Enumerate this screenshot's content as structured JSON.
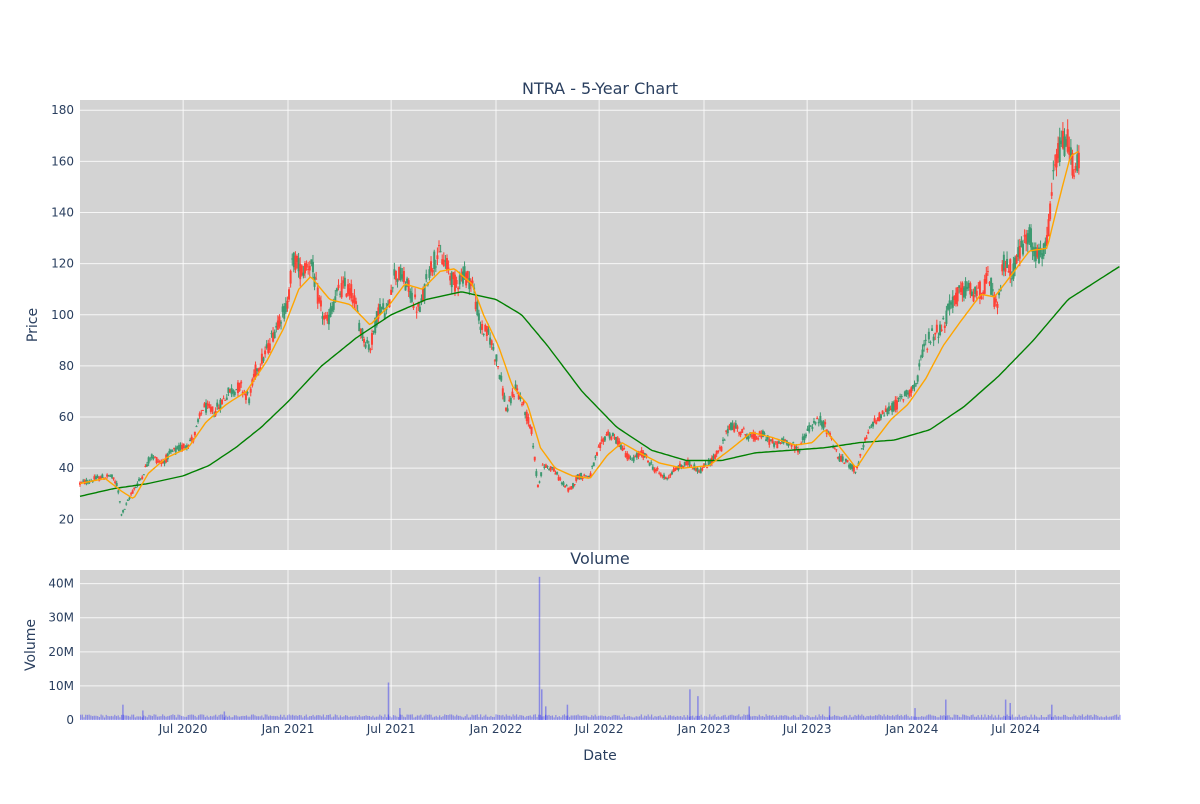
{
  "chart_data": [
    {
      "type": "candlestick",
      "title": "NTRA - 5-Year Chart",
      "ylabel": "Price",
      "ylim": [
        8,
        184
      ],
      "yticks": [
        20,
        40,
        60,
        80,
        100,
        120,
        140,
        160,
        180
      ],
      "xlim": [
        "2020-01-02",
        "2024-12-31"
      ],
      "grid": true,
      "colors": {
        "increasing": "#3d9970",
        "decreasing": "#ff4136",
        "ma_short": "#ffa500",
        "ma_long": "#008000",
        "plot_bg": "#d3d3d3"
      },
      "close_path": [
        [
          "2020-01-02",
          34
        ],
        [
          "2020-02-01",
          36
        ],
        [
          "2020-02-25",
          37
        ],
        [
          "2020-03-08",
          33
        ],
        [
          "2020-03-15",
          22
        ],
        [
          "2020-03-20",
          24
        ],
        [
          "2020-04-01",
          30
        ],
        [
          "2020-04-20",
          37
        ],
        [
          "2020-05-05",
          45
        ],
        [
          "2020-05-25",
          42
        ],
        [
          "2020-06-10",
          46
        ],
        [
          "2020-07-05",
          49
        ],
        [
          "2020-07-20",
          52
        ],
        [
          "2020-08-05",
          64
        ],
        [
          "2020-08-25",
          62
        ],
        [
          "2020-09-20",
          70
        ],
        [
          "2020-10-10",
          72
        ],
        [
          "2020-10-25",
          67
        ],
        [
          "2020-11-05",
          78
        ],
        [
          "2020-11-25",
          86
        ],
        [
          "2020-12-15",
          98
        ],
        [
          "2020-12-30",
          103
        ],
        [
          "2021-01-10",
          122
        ],
        [
          "2021-01-25",
          117
        ],
        [
          "2021-02-10",
          121
        ],
        [
          "2021-02-25",
          104
        ],
        [
          "2021-03-10",
          96
        ],
        [
          "2021-03-25",
          107
        ],
        [
          "2021-04-10",
          111
        ],
        [
          "2021-04-25",
          108
        ],
        [
          "2021-05-10",
          93
        ],
        [
          "2021-05-25",
          87
        ],
        [
          "2021-06-10",
          103
        ],
        [
          "2021-06-25",
          101
        ],
        [
          "2021-07-05",
          116
        ],
        [
          "2021-07-20",
          115
        ],
        [
          "2021-08-05",
          108
        ],
        [
          "2021-08-20",
          101
        ],
        [
          "2021-09-05",
          117
        ],
        [
          "2021-09-20",
          124
        ],
        [
          "2021-10-05",
          120
        ],
        [
          "2021-10-20",
          112
        ],
        [
          "2021-11-05",
          116
        ],
        [
          "2021-11-20",
          113
        ],
        [
          "2021-12-05",
          95
        ],
        [
          "2021-12-20",
          92
        ],
        [
          "2022-01-05",
          80
        ],
        [
          "2022-01-20",
          62
        ],
        [
          "2022-02-05",
          72
        ],
        [
          "2022-02-20",
          63
        ],
        [
          "2022-03-05",
          54
        ],
        [
          "2022-03-15",
          33
        ],
        [
          "2022-03-25",
          41
        ],
        [
          "2022-04-10",
          40
        ],
        [
          "2022-04-25",
          35
        ],
        [
          "2022-05-10",
          31
        ],
        [
          "2022-05-25",
          37
        ],
        [
          "2022-06-15",
          37
        ],
        [
          "2022-06-30",
          47
        ],
        [
          "2022-07-15",
          54
        ],
        [
          "2022-08-05",
          50
        ],
        [
          "2022-08-25",
          43
        ],
        [
          "2022-09-15",
          46
        ],
        [
          "2022-10-05",
          40
        ],
        [
          "2022-10-25",
          36
        ],
        [
          "2022-11-15",
          40
        ],
        [
          "2022-12-05",
          42
        ],
        [
          "2022-12-25",
          39
        ],
        [
          "2023-01-10",
          42
        ],
        [
          "2023-02-01",
          48
        ],
        [
          "2023-02-15",
          57
        ],
        [
          "2023-03-05",
          55
        ],
        [
          "2023-03-25",
          52
        ],
        [
          "2023-04-15",
          53
        ],
        [
          "2023-05-05",
          49
        ],
        [
          "2023-05-25",
          51
        ],
        [
          "2023-06-15",
          47
        ],
        [
          "2023-07-05",
          56
        ],
        [
          "2023-07-25",
          59
        ],
        [
          "2023-08-10",
          53
        ],
        [
          "2023-08-25",
          44
        ],
        [
          "2023-09-10",
          42
        ],
        [
          "2023-09-25",
          39
        ],
        [
          "2023-10-10",
          50
        ],
        [
          "2023-10-25",
          58
        ],
        [
          "2023-11-15",
          62
        ],
        [
          "2023-12-05",
          65
        ],
        [
          "2023-12-25",
          70
        ],
        [
          "2024-01-10",
          73
        ],
        [
          "2024-01-20",
          87
        ],
        [
          "2024-02-05",
          92
        ],
        [
          "2024-02-25",
          96
        ],
        [
          "2024-03-15",
          107
        ],
        [
          "2024-04-05",
          110
        ],
        [
          "2024-04-25",
          108
        ],
        [
          "2024-05-15",
          114
        ],
        [
          "2024-05-30",
          101
        ],
        [
          "2024-06-10",
          121
        ],
        [
          "2024-06-25",
          117
        ],
        [
          "2024-07-10",
          126
        ],
        [
          "2024-07-25",
          131
        ],
        [
          "2024-08-10",
          122
        ],
        [
          "2024-08-25",
          127
        ],
        [
          "2024-09-05",
          153
        ],
        [
          "2024-09-15",
          165
        ],
        [
          "2024-09-30",
          168
        ],
        [
          "2024-10-10",
          158
        ],
        [
          "2024-10-20",
          162
        ]
      ],
      "moving_average_short": [
        [
          "2020-01-02",
          34
        ],
        [
          "2020-02-15",
          36
        ],
        [
          "2020-03-15",
          31
        ],
        [
          "2020-04-05",
          28
        ],
        [
          "2020-05-01",
          38
        ],
        [
          "2020-06-01",
          44
        ],
        [
          "2020-07-10",
          48
        ],
        [
          "2020-08-10",
          58
        ],
        [
          "2020-09-15",
          65
        ],
        [
          "2020-10-20",
          70
        ],
        [
          "2020-11-25",
          82
        ],
        [
          "2020-12-25",
          95
        ],
        [
          "2021-01-20",
          110
        ],
        [
          "2021-02-10",
          115
        ],
        [
          "2021-03-15",
          106
        ],
        [
          "2021-04-20",
          104
        ],
        [
          "2021-05-25",
          96
        ],
        [
          "2021-06-25",
          103
        ],
        [
          "2021-07-25",
          112
        ],
        [
          "2021-08-25",
          110
        ],
        [
          "2021-09-25",
          117
        ],
        [
          "2021-10-20",
          118
        ],
        [
          "2021-11-20",
          112
        ],
        [
          "2021-12-10",
          100
        ],
        [
          "2022-01-05",
          88
        ],
        [
          "2022-01-30",
          72
        ],
        [
          "2022-02-25",
          65
        ],
        [
          "2022-03-20",
          48
        ],
        [
          "2022-04-15",
          40
        ],
        [
          "2022-05-15",
          37
        ],
        [
          "2022-06-15",
          36
        ],
        [
          "2022-07-15",
          45
        ],
        [
          "2022-08-10",
          50
        ],
        [
          "2022-09-10",
          46
        ],
        [
          "2022-10-15",
          42
        ],
        [
          "2022-11-25",
          40
        ],
        [
          "2023-01-10",
          41
        ],
        [
          "2023-02-20",
          48
        ],
        [
          "2023-03-25",
          54
        ],
        [
          "2023-05-01",
          52
        ],
        [
          "2023-06-10",
          49
        ],
        [
          "2023-07-10",
          50
        ],
        [
          "2023-08-01",
          55
        ],
        [
          "2023-09-01",
          47
        ],
        [
          "2023-09-25",
          40
        ],
        [
          "2023-10-25",
          50
        ],
        [
          "2023-11-25",
          59
        ],
        [
          "2023-12-25",
          65
        ],
        [
          "2024-01-25",
          75
        ],
        [
          "2024-02-25",
          88
        ],
        [
          "2024-03-25",
          97
        ],
        [
          "2024-05-01",
          108
        ],
        [
          "2024-05-25",
          107
        ],
        [
          "2024-06-25",
          116
        ],
        [
          "2024-07-25",
          125
        ],
        [
          "2024-08-25",
          126
        ],
        [
          "2024-09-15",
          145
        ],
        [
          "2024-10-05",
          162
        ],
        [
          "2024-10-20",
          164
        ]
      ],
      "moving_average_long": [
        [
          "2020-01-02",
          29
        ],
        [
          "2020-03-01",
          32
        ],
        [
          "2020-05-01",
          34
        ],
        [
          "2020-07-01",
          37
        ],
        [
          "2020-08-15",
          41
        ],
        [
          "2020-10-01",
          48
        ],
        [
          "2020-11-15",
          56
        ],
        [
          "2021-01-01",
          66
        ],
        [
          "2021-03-01",
          80
        ],
        [
          "2021-05-01",
          91
        ],
        [
          "2021-07-01",
          100
        ],
        [
          "2021-09-01",
          106
        ],
        [
          "2021-11-01",
          109
        ],
        [
          "2022-01-01",
          106
        ],
        [
          "2022-02-15",
          100
        ],
        [
          "2022-04-01",
          88
        ],
        [
          "2022-06-01",
          70
        ],
        [
          "2022-08-01",
          56
        ],
        [
          "2022-10-01",
          47
        ],
        [
          "2022-12-01",
          43
        ],
        [
          "2023-02-01",
          43
        ],
        [
          "2023-04-01",
          46
        ],
        [
          "2023-06-01",
          47
        ],
        [
          "2023-08-01",
          48
        ],
        [
          "2023-10-01",
          50
        ],
        [
          "2023-12-01",
          51
        ],
        [
          "2024-02-01",
          55
        ],
        [
          "2024-04-01",
          64
        ],
        [
          "2024-06-01",
          76
        ],
        [
          "2024-08-01",
          90
        ],
        [
          "2024-10-01",
          106
        ],
        [
          "2024-12-31",
          119
        ]
      ]
    },
    {
      "type": "bar",
      "title": "Volume",
      "ylabel": "Volume",
      "xlabel": "Date",
      "ylim": [
        0,
        44
      ],
      "yticks": [
        {
          "v": 0,
          "label": "0"
        },
        {
          "v": 10,
          "label": "10M"
        },
        {
          "v": 20,
          "label": "20M"
        },
        {
          "v": 30,
          "label": "30M"
        },
        {
          "v": 40,
          "label": "40M"
        }
      ],
      "xticks": [
        {
          "date": "2020-07-01",
          "label": "Jul 2020"
        },
        {
          "date": "2021-01-01",
          "label": "Jan 2021"
        },
        {
          "date": "2021-07-01",
          "label": "Jul 2021"
        },
        {
          "date": "2022-01-01",
          "label": "Jan 2022"
        },
        {
          "date": "2022-07-01",
          "label": "Jul 2022"
        },
        {
          "date": "2023-01-01",
          "label": "Jan 2023"
        },
        {
          "date": "2023-07-01",
          "label": "Jul 2023"
        },
        {
          "date": "2024-01-01",
          "label": "Jan 2024"
        },
        {
          "date": "2024-07-01",
          "label": "Jul 2024"
        }
      ],
      "baseline_millions": 1.2,
      "spikes_millions": [
        [
          "2020-03-16",
          4.5
        ],
        [
          "2020-04-20",
          2.8
        ],
        [
          "2020-09-10",
          2.5
        ],
        [
          "2021-06-25",
          11
        ],
        [
          "2021-07-15",
          3.5
        ],
        [
          "2022-03-17",
          42
        ],
        [
          "2022-03-21",
          9
        ],
        [
          "2022-03-28",
          4
        ],
        [
          "2022-05-05",
          4.5
        ],
        [
          "2022-12-06",
          9
        ],
        [
          "2022-12-20",
          7
        ],
        [
          "2023-03-20",
          4
        ],
        [
          "2023-08-08",
          4
        ],
        [
          "2024-01-05",
          3.5
        ],
        [
          "2024-02-28",
          6
        ],
        [
          "2024-06-12",
          6
        ],
        [
          "2024-06-20",
          5
        ],
        [
          "2024-09-01",
          4.5
        ]
      ],
      "color": "#0000ff"
    }
  ]
}
